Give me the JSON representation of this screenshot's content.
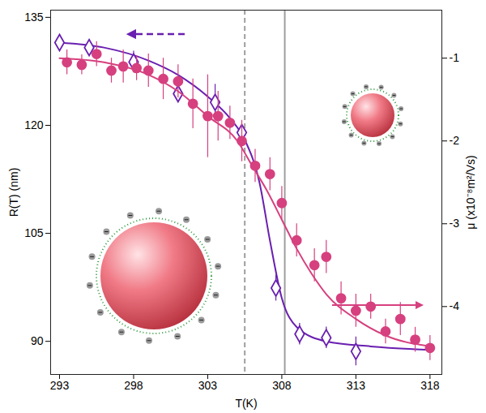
{
  "chart_data": {
    "type": "scatter",
    "x_label": "T(K)",
    "y_label": "R(T) (nm)",
    "y2_label": "μ (x10⁻⁸m²/Vs)",
    "xlim": [
      292.4,
      318.8
    ],
    "xticks": [
      293,
      298,
      303,
      308,
      313,
      318
    ],
    "ylim": [
      85.4,
      136
    ],
    "yticks": [
      90,
      105,
      120,
      135
    ],
    "y2lim": [
      -4.82,
      -0.42
    ],
    "y2ticks": [
      -4,
      -3,
      -2,
      -1
    ],
    "vlines": [
      {
        "x": 305.5,
        "line_style": "dashed",
        "color": "#9e9e9e"
      },
      {
        "x": 308.2,
        "line_style": "solid",
        "color": "#9e9e9e"
      }
    ],
    "series": [
      {
        "type": "line",
        "axis": "y",
        "color": "#6a1fb0",
        "x": [
          293,
          296,
          299,
          301,
          303,
          304.5,
          305.5,
          306.5,
          307.2,
          308,
          309,
          311,
          314,
          318
        ],
        "values": [
          131.5,
          130.8,
          129,
          127,
          124,
          121,
          118,
          112,
          104,
          96,
          92,
          90,
          89.3,
          88.8
        ]
      },
      {
        "type": "scatter",
        "axis": "y",
        "color": "#6a1fb0",
        "marker": "diamond",
        "x": [
          293,
          295,
          298,
          301,
          303.5,
          305.3,
          307.6,
          309.2,
          311,
          313
        ],
        "values": [
          131.5,
          130.8,
          128.8,
          124.4,
          123.2,
          119,
          97.4,
          91,
          90.5,
          88.6
        ],
        "errors": [
          0.8,
          0.8,
          1.5,
          1.2,
          2.5,
          1,
          1.8,
          1.5,
          1.5,
          2
        ]
      },
      {
        "type": "line",
        "axis": "y2",
        "color": "#d6407f",
        "x": [
          293,
          296,
          299,
          301,
          303,
          305,
          306,
          307,
          308,
          309,
          310,
          311,
          313,
          315,
          318
        ],
        "values": [
          -1,
          -1.05,
          -1.2,
          -1.4,
          -1.7,
          -2,
          -2.3,
          -2.6,
          -2.95,
          -3.3,
          -3.6,
          -3.85,
          -4.15,
          -4.35,
          -4.48
        ]
      },
      {
        "type": "scatter",
        "axis": "y2",
        "color": "#d6407f",
        "marker": "circle",
        "x": [
          293.5,
          294.5,
          295.5,
          296.5,
          297.3,
          298.2,
          299,
          300,
          301,
          302,
          303,
          303.7,
          304.5,
          305.3,
          306.2,
          307.2,
          308,
          309,
          310.2,
          311,
          312,
          313,
          314,
          315,
          316,
          317,
          318
        ],
        "values": [
          -1.05,
          -1.08,
          -0.95,
          -1.15,
          -1.1,
          -1.12,
          -1.15,
          -1.25,
          -1.28,
          -1.55,
          -1.7,
          -1.7,
          -1.78,
          -2,
          -2.3,
          -2.4,
          -2.75,
          -3.2,
          -3.5,
          -3.4,
          -3.9,
          -4.05,
          -4,
          -4.3,
          -4.15,
          -4.4,
          -4.5
        ],
        "errors": [
          0.15,
          0.12,
          0.15,
          0.15,
          0.2,
          0.15,
          0.2,
          0.25,
          0.2,
          0.3,
          0.5,
          0.3,
          0.2,
          0.25,
          0.2,
          0.2,
          0.2,
          0.2,
          0.2,
          0.2,
          0.2,
          0.2,
          0.15,
          0.15,
          0.2,
          0.15,
          0.15
        ]
      }
    ]
  }
}
